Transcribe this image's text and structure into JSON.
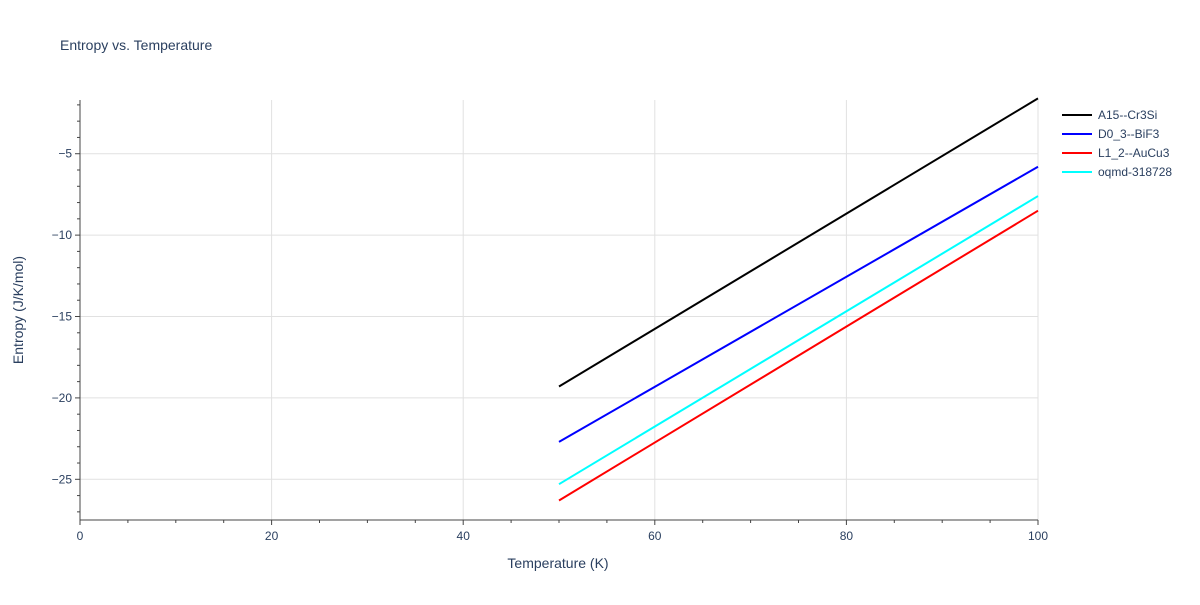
{
  "chart_data": {
    "type": "line",
    "title": "Entropy vs. Temperature",
    "xlabel": "Temperature (K)",
    "ylabel": "Entropy (J/K/mol)",
    "xlim": [
      0,
      100
    ],
    "ylim": [
      -27.5,
      -1.7
    ],
    "x_ticks": [
      0,
      20,
      40,
      60,
      80,
      100
    ],
    "y_ticks": [
      -25,
      -20,
      -15,
      -10,
      -5
    ],
    "y_tick_labels": [
      "−25",
      "−20",
      "−15",
      "−10",
      "−5"
    ],
    "grid": true,
    "legend_position": "top-right",
    "series": [
      {
        "name": "A15--Cr3Si",
        "color": "#000000",
        "x": [
          50,
          100
        ],
        "y": [
          -19.3,
          -1.6
        ]
      },
      {
        "name": "D0_3--BiF3",
        "color": "#0000ff",
        "x": [
          50,
          100
        ],
        "y": [
          -22.7,
          -5.8
        ]
      },
      {
        "name": "L1_2--AuCu3",
        "color": "#ff0000",
        "x": [
          50,
          100
        ],
        "y": [
          -26.3,
          -8.5
        ]
      },
      {
        "name": "oqmd-318728",
        "color": "#00ffff",
        "x": [
          50,
          100
        ],
        "y": [
          -25.3,
          -7.6
        ]
      }
    ]
  }
}
